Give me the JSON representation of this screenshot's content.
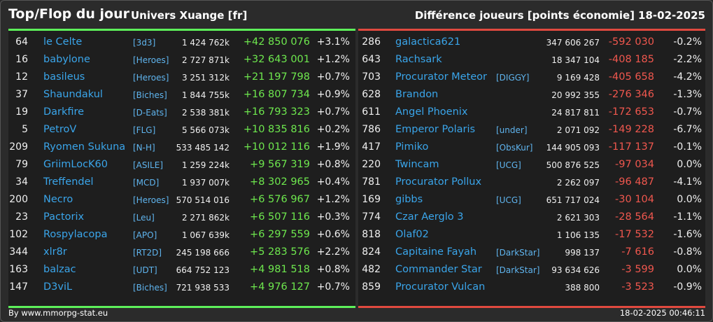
{
  "header": {
    "title": "Top/Flop du jour",
    "subtitle": "Univers Xuange [fr]",
    "metric": "Différence joueurs [points économie]",
    "date": "18-02-2025"
  },
  "colors": {
    "positive": "#6ee84e",
    "negative": "#f0574e",
    "name": "#3aa5ea",
    "top_bar": "#5df05a",
    "flop_bar": "#e0493f"
  },
  "top": [
    {
      "rank": "64",
      "name": "le Celte",
      "ally": "[3d3]",
      "score": "1 424 762k",
      "diff": "+42 850 076",
      "pct": "+3.1%"
    },
    {
      "rank": "16",
      "name": "babylone",
      "ally": "[Heroes]",
      "score": "2 727 871k",
      "diff": "+32 643 001",
      "pct": "+1.2%"
    },
    {
      "rank": "12",
      "name": "basileus",
      "ally": "[Heroes]",
      "score": "3 251 312k",
      "diff": "+21 197 798",
      "pct": "+0.7%"
    },
    {
      "rank": "37",
      "name": "Shaundakul",
      "ally": "[Biches]",
      "score": "1 844 755k",
      "diff": "+16 807 734",
      "pct": "+0.9%"
    },
    {
      "rank": "19",
      "name": "Darkfire",
      "ally": "[D-Eats]",
      "score": "2 538 381k",
      "diff": "+16 793 323",
      "pct": "+0.7%"
    },
    {
      "rank": "5",
      "name": "PetroV",
      "ally": "[FLG]",
      "score": "5 566 073k",
      "diff": "+10 835 816",
      "pct": "+0.2%"
    },
    {
      "rank": "209",
      "name": "Ryomen Sukuna",
      "ally": "[N-H]",
      "score": "533 485 142",
      "diff": "+10 012 116",
      "pct": "+1.9%"
    },
    {
      "rank": "79",
      "name": "GriimLocK60",
      "ally": "[ASILE]",
      "score": "1 259 224k",
      "diff": "+9 567 319",
      "pct": "+0.8%"
    },
    {
      "rank": "34",
      "name": "Treffendel",
      "ally": "[MCD]",
      "score": "1 937 007k",
      "diff": "+8 302 965",
      "pct": "+0.4%"
    },
    {
      "rank": "200",
      "name": "Necro",
      "ally": "[Heroes]",
      "score": "570 514 016",
      "diff": "+6 576 967",
      "pct": "+1.2%"
    },
    {
      "rank": "23",
      "name": "Pactorix",
      "ally": "[Leu]",
      "score": "2 271 862k",
      "diff": "+6 507 116",
      "pct": "+0.3%"
    },
    {
      "rank": "102",
      "name": "Rospylacopa",
      "ally": "[APO]",
      "score": "1 067 639k",
      "diff": "+6 297 559",
      "pct": "+0.6%"
    },
    {
      "rank": "344",
      "name": "xlr8r",
      "ally": "[RT2D]",
      "score": "245 198 666",
      "diff": "+5 283 576",
      "pct": "+2.2%"
    },
    {
      "rank": "163",
      "name": "balzac",
      "ally": "[UDT]",
      "score": "664 752 123",
      "diff": "+4 981 518",
      "pct": "+0.8%"
    },
    {
      "rank": "147",
      "name": "D3viL",
      "ally": "[Biches]",
      "score": "721 938 533",
      "diff": "+4 976 127",
      "pct": "+0.7%"
    }
  ],
  "flop": [
    {
      "rank": "286",
      "name": "galactica621",
      "ally": "",
      "score": "347 606 267",
      "diff": "-592 030",
      "pct": "-0.2%"
    },
    {
      "rank": "643",
      "name": "Rachsark",
      "ally": "",
      "score": "18 347 104",
      "diff": "-408 185",
      "pct": "-2.2%"
    },
    {
      "rank": "703",
      "name": "Procurator Meteor",
      "ally": "[DIGGY]",
      "score": "9 169 428",
      "diff": "-405 658",
      "pct": "-4.2%"
    },
    {
      "rank": "628",
      "name": "Brandon",
      "ally": "",
      "score": "20 992 355",
      "diff": "-276 346",
      "pct": "-1.3%"
    },
    {
      "rank": "611",
      "name": "Angel Phoenix",
      "ally": "",
      "score": "24 817 811",
      "diff": "-172 653",
      "pct": "-0.7%"
    },
    {
      "rank": "786",
      "name": "Emperor Polaris",
      "ally": "[under]",
      "score": "2 071 092",
      "diff": "-149 228",
      "pct": "-6.7%"
    },
    {
      "rank": "417",
      "name": "Pimiko",
      "ally": "[ObsKur]",
      "score": "144 905 093",
      "diff": "-117 137",
      "pct": "-0.1%"
    },
    {
      "rank": "220",
      "name": "Twincam",
      "ally": "[UCG]",
      "score": "500 876 525",
      "diff": "-97 034",
      "pct": "0.0%"
    },
    {
      "rank": "781",
      "name": "Procurator Pollux",
      "ally": "",
      "score": "2 262 097",
      "diff": "-96 487",
      "pct": "-4.1%"
    },
    {
      "rank": "169",
      "name": "gibbs",
      "ally": "[UCG]",
      "score": "651 717 024",
      "diff": "-30 104",
      "pct": "0.0%"
    },
    {
      "rank": "774",
      "name": "Czar Aerglo 3",
      "ally": "",
      "score": "2 621 303",
      "diff": "-28 564",
      "pct": "-1.1%"
    },
    {
      "rank": "818",
      "name": "Olaf02",
      "ally": "",
      "score": "1 106 135",
      "diff": "-17 532",
      "pct": "-1.6%"
    },
    {
      "rank": "824",
      "name": "Capitaine Fayah",
      "ally": "[DarkStar]",
      "score": "998 137",
      "diff": "-7 616",
      "pct": "-0.8%"
    },
    {
      "rank": "482",
      "name": "Commander Star",
      "ally": "[DarkStar]",
      "score": "93 634 626",
      "diff": "-3 599",
      "pct": "0.0%"
    },
    {
      "rank": "859",
      "name": "Procurator Vulcan",
      "ally": "",
      "score": "388 800",
      "diff": "-3 523",
      "pct": "-0.9%"
    }
  ],
  "footer": {
    "source": "By www.mmorpg-stat.eu",
    "timestamp": "18-02-2025 00:46:11"
  }
}
